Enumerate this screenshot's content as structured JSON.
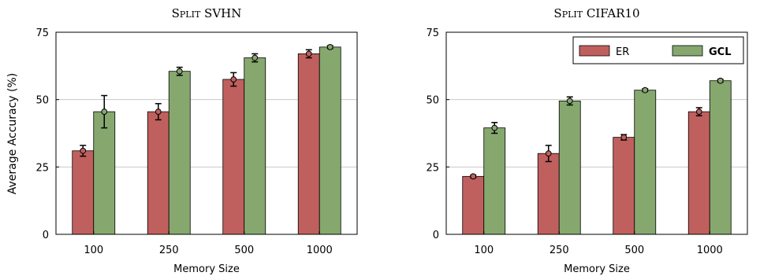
{
  "y_axis_label": "Average Accuracy (%)",
  "legend": {
    "items": [
      {
        "label": "ER",
        "bold": false,
        "color": "#c0605e"
      },
      {
        "label": "GCL",
        "bold": true,
        "color": "#86a86f"
      }
    ]
  },
  "colors": {
    "ER": "#c0605e",
    "GCL": "#86a86f",
    "grid": "#c8c8c8",
    "axis": "#000000"
  },
  "chart_data": [
    {
      "type": "bar",
      "title": "Split SVHN",
      "xlabel": "Memory Size",
      "ylabel": "Average Accuracy (%)",
      "categories": [
        "100",
        "250",
        "500",
        "1000"
      ],
      "ylim": [
        0,
        75
      ],
      "yticks": [
        "0",
        "25",
        "50",
        "75"
      ],
      "grid": true,
      "legend": "none",
      "series": [
        {
          "name": "ER",
          "values": [
            31,
            45.5,
            57.5,
            67
          ],
          "errors": [
            2,
            3,
            2.5,
            1.5
          ]
        },
        {
          "name": "GCL",
          "values": [
            45.5,
            60.5,
            65.5,
            69.5
          ],
          "errors": [
            6,
            1.5,
            1.5,
            0.5
          ]
        }
      ]
    },
    {
      "type": "bar",
      "title": "Split CIFAR10",
      "xlabel": "Memory Size",
      "categories": [
        "100",
        "250",
        "500",
        "1000"
      ],
      "ylim": [
        0,
        75
      ],
      "yticks": [
        "0",
        "25",
        "50",
        "75"
      ],
      "grid": true,
      "legend": "top-right",
      "series": [
        {
          "name": "ER",
          "values": [
            21.5,
            30,
            36,
            45.5
          ],
          "errors": [
            0.5,
            3,
            1,
            1.5
          ]
        },
        {
          "name": "GCL",
          "values": [
            39.5,
            49.5,
            53.5,
            57
          ],
          "errors": [
            2,
            1.5,
            0.5,
            0.5
          ]
        }
      ]
    }
  ]
}
